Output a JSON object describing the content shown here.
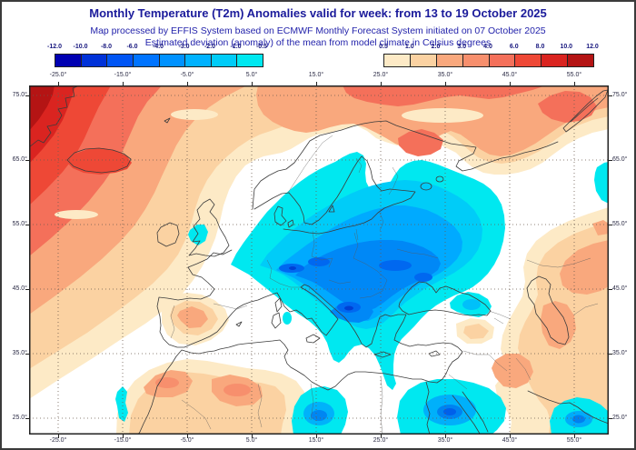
{
  "header": {
    "title": "Monthly Temperature (T2m) Anomalies valid for week: from 13 to 19 October 2025",
    "subtitle_line1": "Map processed by EFFIS System based on ECMWF Monthly Forecast System initiated on 07 October 2025",
    "subtitle_line2": "Estimated deviation (anomaly) of the mean from model climate in Celsius degrees"
  },
  "legend": {
    "units": "Celsius degrees",
    "negative_scale": {
      "tick_labels": [
        "-12.0",
        "-10.0",
        "-8.0",
        "-6.0",
        "-4.0",
        "-3.0",
        "-2.0",
        "-1.0",
        "-0.5"
      ],
      "segment_colors": [
        "#0000b2",
        "#0032d8",
        "#0055f4",
        "#0074ff",
        "#0092ff",
        "#00b2ff",
        "#00ccf8",
        "#00e8f0"
      ]
    },
    "positive_scale": {
      "tick_labels": [
        "0.5",
        "1.0",
        "2.0",
        "3.0",
        "4.0",
        "6.0",
        "8.0",
        "10.0",
        "12.0"
      ],
      "segment_colors": [
        "#fdeac6",
        "#fbd2a2",
        "#f9a87d",
        "#f78f6d",
        "#f4705a",
        "#ee4836",
        "#da2420",
        "#b41414"
      ]
    }
  },
  "map_axes": {
    "top_lon_labels": [
      "-25.0°",
      "-15.0°",
      "-5.0°",
      "5.0°",
      "15.0°",
      "25.0°",
      "35.0°",
      "45.0°",
      "55.0°"
    ],
    "bottom_lon_labels": [
      "-25.0°",
      "-15.0°",
      "-5.0°",
      "5.0°",
      "15.0°",
      "25.0°",
      "35.0°",
      "45.0°",
      "55.0°"
    ],
    "left_lat_labels": [
      "75.0°",
      "65.0°",
      "55.0°",
      "45.0°",
      "35.0°",
      "25.0°"
    ],
    "right_lat_labels": [
      "75.0°",
      "65.0°",
      "55.0°",
      "45.0°",
      "35.0°",
      "25.0°"
    ]
  },
  "colors": {
    "title_text": "#1b1b9b",
    "subtitle_text": "#2323ab",
    "axis_text": "#2b2b45",
    "frame": "#222222",
    "grid_dots": "#6b5b4f",
    "neutral_background": "#ffffff"
  }
}
